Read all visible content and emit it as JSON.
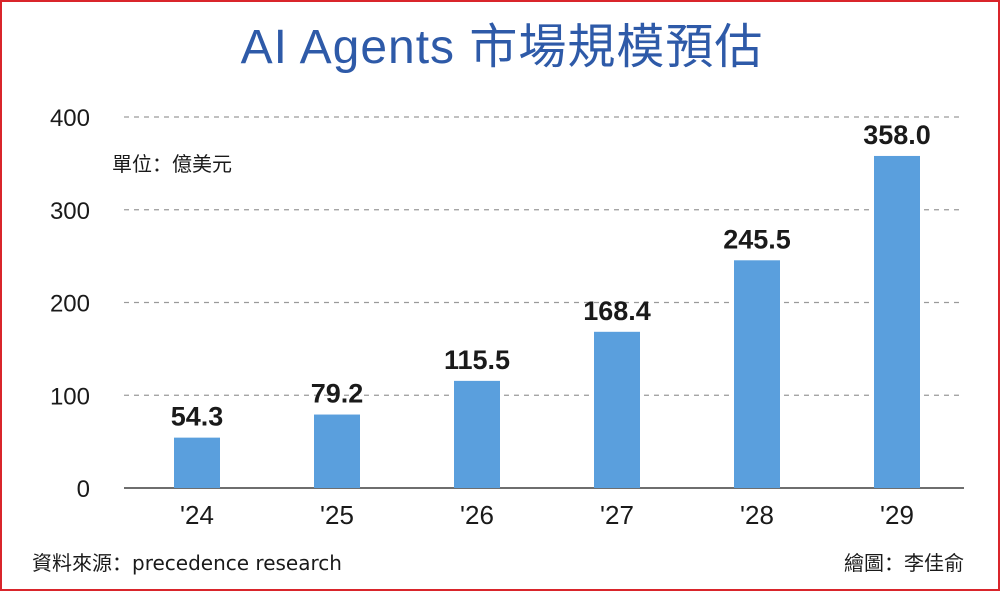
{
  "header": {
    "title": "AI Agents 市場規模預估"
  },
  "unit_label": "單位：億美元",
  "footer": {
    "source": "資料來源：precedence research",
    "credit": "繪圖：李佳俞"
  },
  "colors": {
    "bar": "#5a9fdd",
    "title": "#2e5aa8",
    "border": "#d9252b",
    "grid": "#9a9a9a"
  },
  "chart_data": {
    "type": "bar",
    "title": "AI Agents 市場規模預估",
    "categories": [
      "'24",
      "'25",
      "'26",
      "'27",
      "'28",
      "'29"
    ],
    "values": [
      54.3,
      79.2,
      115.5,
      168.4,
      245.5,
      358.0
    ],
    "value_labels": [
      "54.3",
      "79.2",
      "115.5",
      "168.4",
      "245.5",
      "358.0"
    ],
    "yticks": [
      0,
      100,
      200,
      300,
      400
    ],
    "ylim": [
      0,
      400
    ],
    "xlabel": "",
    "ylabel": "",
    "grid": true,
    "legend": "none"
  }
}
